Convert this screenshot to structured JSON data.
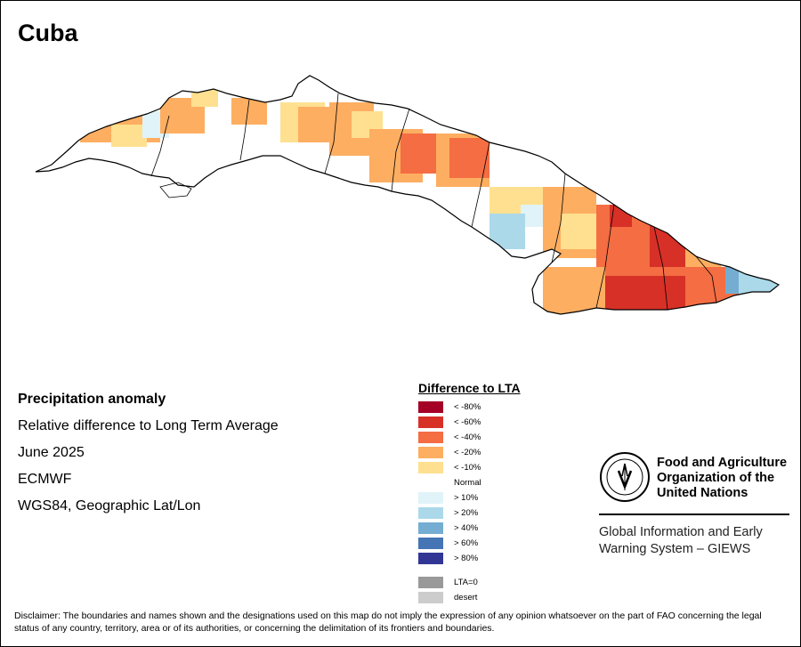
{
  "map": {
    "title": "Cuba"
  },
  "info": {
    "heading": "Precipitation anomaly",
    "line1": "Relative difference to Long Term Average",
    "line2": "June 2025",
    "line3": "ECMWF",
    "line4": "WGS84, Geographic Lat/Lon"
  },
  "legend": {
    "title": "Difference to LTA",
    "items": [
      {
        "label": "< -80%",
        "color": "#a50026"
      },
      {
        "label": "< -60%",
        "color": "#d73027"
      },
      {
        "label": "< -40%",
        "color": "#f46d43"
      },
      {
        "label": "< -20%",
        "color": "#fdae61"
      },
      {
        "label": "< -10%",
        "color": "#fee090"
      },
      {
        "label": "Normal",
        "color": "#ffffff"
      },
      {
        "label": "> 10%",
        "color": "#e0f3f8"
      },
      {
        "label": "> 20%",
        "color": "#abd9e9"
      },
      {
        "label": "> 40%",
        "color": "#74add1"
      },
      {
        "label": "> 60%",
        "color": "#4575b4"
      },
      {
        "label": "> 80%",
        "color": "#313695"
      }
    ],
    "extra": [
      {
        "label": "LTA=0",
        "color": "#999999"
      },
      {
        "label": "desert",
        "color": "#cccccc"
      }
    ]
  },
  "org": {
    "logo_text": "FAO",
    "logo_motto": "FIAT PANIS",
    "name_line1": "Food and Agriculture",
    "name_line2": "Organization of the",
    "name_line3": "United Nations",
    "system_line1": "Global Information and Early",
    "system_line2": "Warning System – GIEWS"
  },
  "disclaimer": "Disclaimer: The boundaries and names shown and the designations used on this map do not imply the expression of any opinion whatsoever on the part of FAO concerning the legal status of any country, territory, area or of its authorities, or concerning the delimitation of its frontiers and boundaries."
}
